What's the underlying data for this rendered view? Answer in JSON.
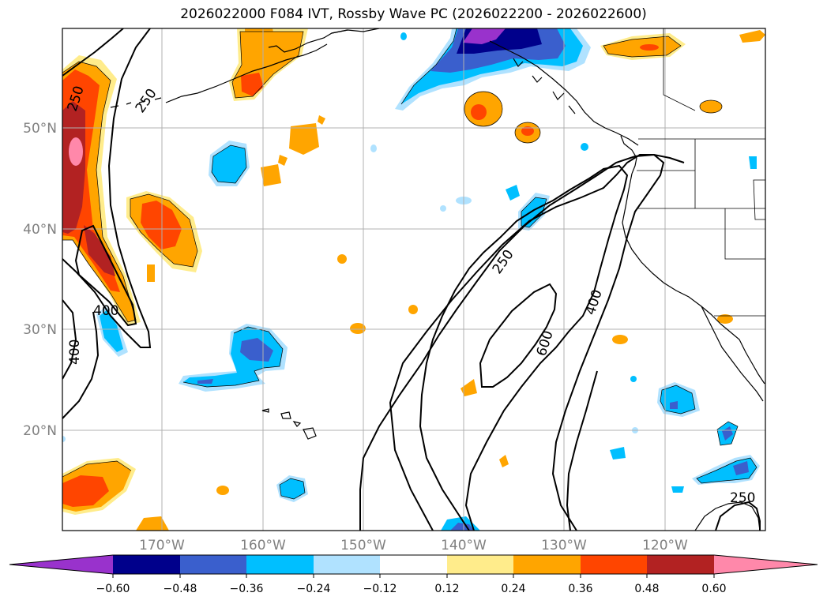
{
  "title": "2026022000 F084 IVT, Rossby Wave PC (2026022200 - 2026022600)",
  "map": {
    "lat_labels": [
      "50°N",
      "40°N",
      "30°N",
      "20°N"
    ],
    "lon_labels": [
      "170°W",
      "160°W",
      "150°W",
      "140°W",
      "130°W",
      "120°W"
    ],
    "contour_labels": [
      "250",
      "250",
      "400",
      "400",
      "250",
      "400",
      "600",
      "250"
    ]
  },
  "colorbar": {
    "tick_labels": [
      "−0.60",
      "−0.48",
      "−0.36",
      "−0.24",
      "−0.12",
      "0.12",
      "0.24",
      "0.36",
      "0.48",
      "0.60"
    ],
    "colors": [
      "#9932cc",
      "#00008b",
      "#3a5fcd",
      "#00bfff",
      "#b0e2ff",
      "#ffffff",
      "#ffec8b",
      "#ffa500",
      "#ff4500",
      "#b22222",
      "#ff88aa"
    ]
  },
  "colors": {
    "neg_deep": "#9932cc",
    "neg_navy": "#00008b",
    "neg_royal": "#3a5fcd",
    "neg_sky": "#00bfff",
    "neg_light": "#b0e2ff",
    "pos_light": "#ffec8b",
    "pos_orange": "#ffa500",
    "pos_red": "#ff4500",
    "pos_brick": "#b22222",
    "pos_pink": "#ff88aa",
    "grid": "#b0b0b0"
  }
}
